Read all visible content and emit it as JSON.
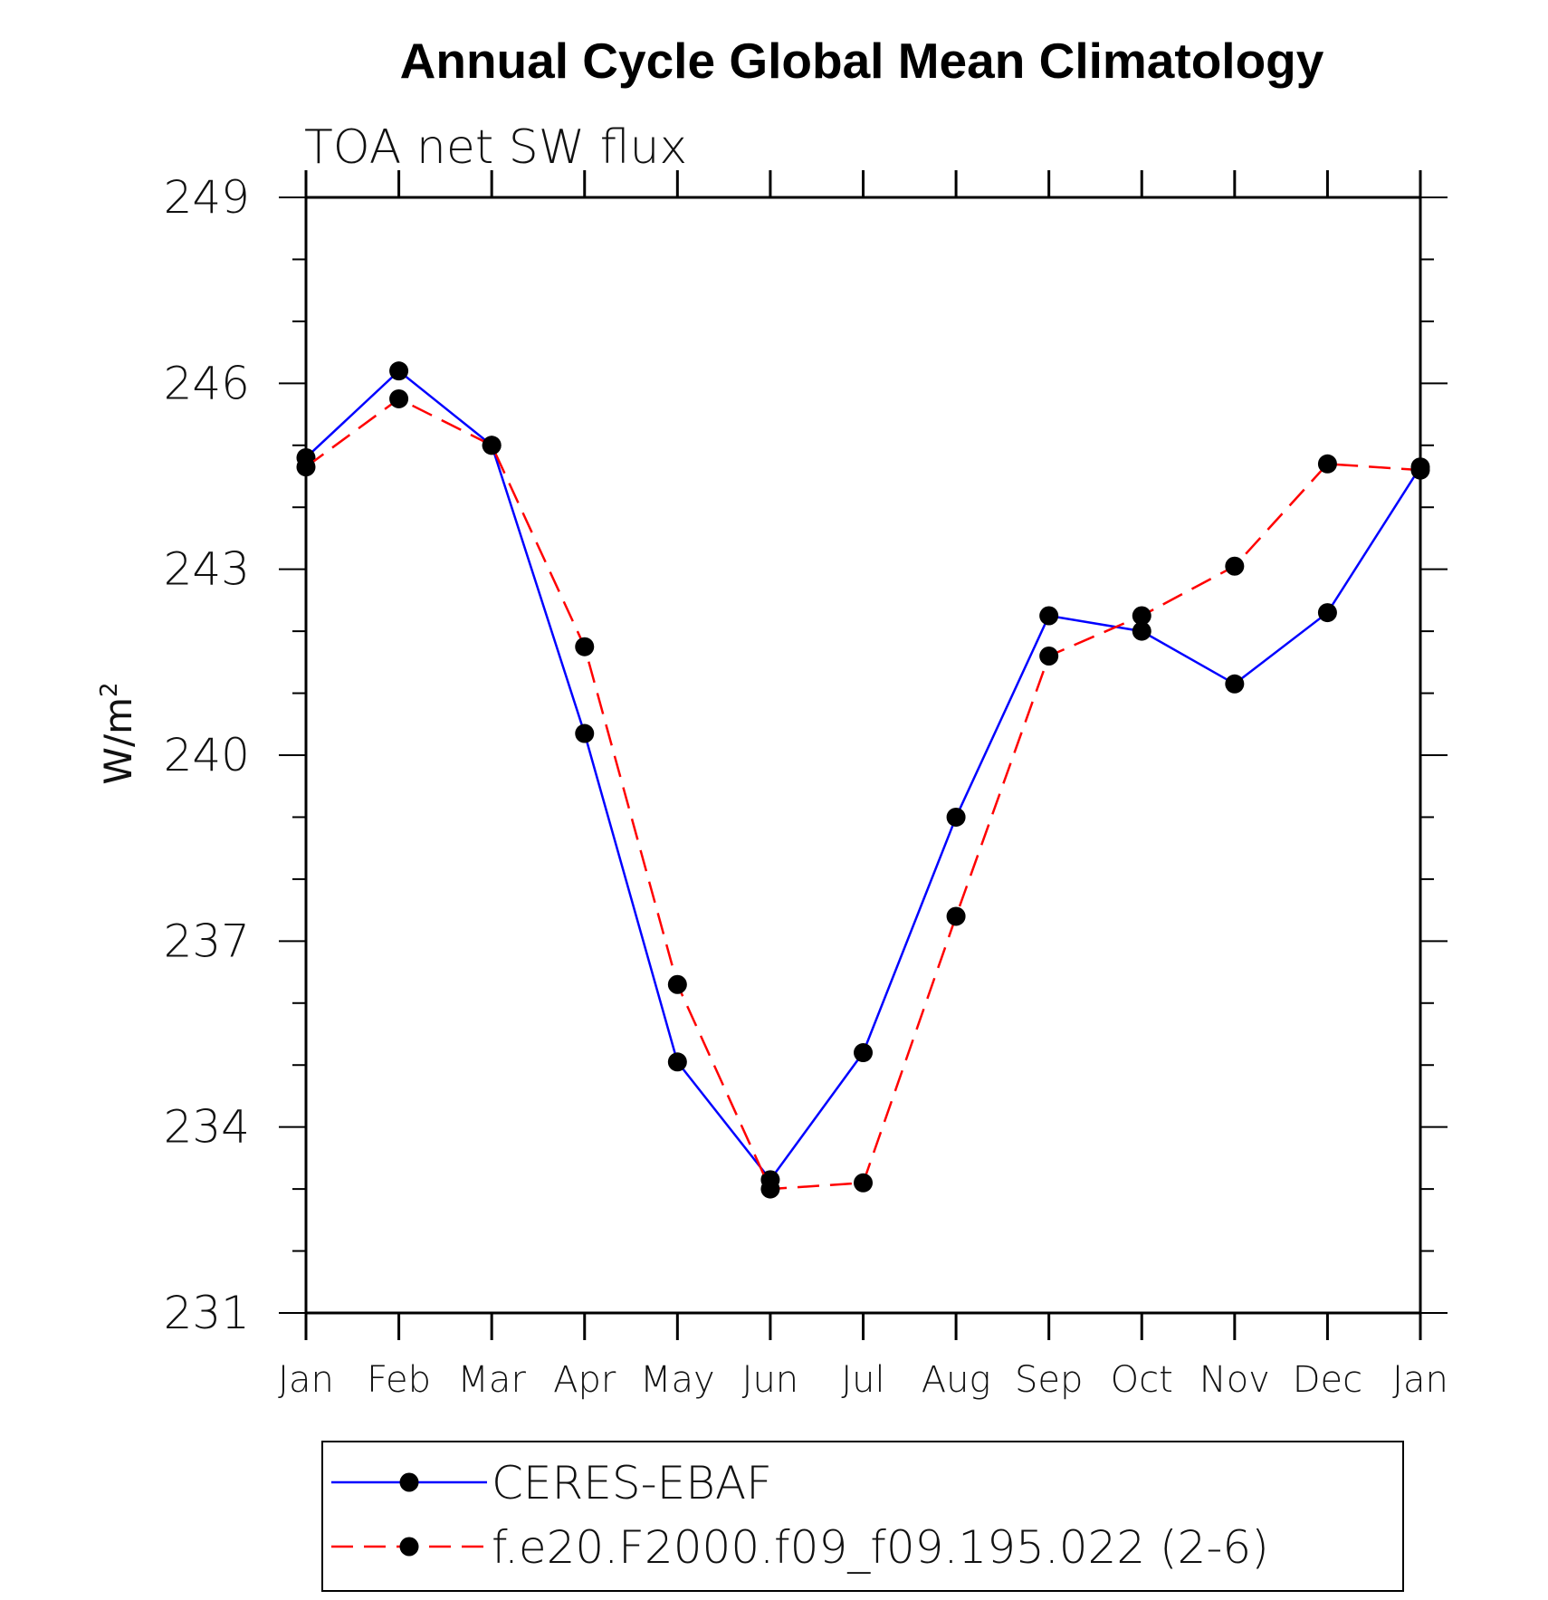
{
  "chart_data": {
    "type": "line",
    "title": "Annual Cycle Global Mean Climatology",
    "subtitle": "TOA net SW flux",
    "ylabel": "W/m",
    "ylabel_superscript": "2",
    "xlabel": "",
    "categories": [
      "Jan",
      "Feb",
      "Mar",
      "Apr",
      "May",
      "Jun",
      "Jul",
      "Aug",
      "Sep",
      "Oct",
      "Nov",
      "Dec",
      "Jan"
    ],
    "ylim": [
      231,
      249
    ],
    "yticks": [
      "249",
      "246",
      "243",
      "240",
      "237",
      "234",
      "231"
    ],
    "grid": false,
    "legend_position": "bottom",
    "series": [
      {
        "name": "CERES-EBAF",
        "color": "#0000ff",
        "line_style": "solid",
        "marker": "filled-circle",
        "values": [
          244.8,
          246.2,
          245.0,
          240.35,
          235.05,
          233.15,
          235.2,
          239.0,
          242.25,
          242.0,
          241.15,
          242.3,
          244.65
        ]
      },
      {
        "name": "f.e20.F2000.f09_f09.195.022 (2-6)",
        "color": "#ff0000",
        "line_style": "dashed",
        "marker": "filled-circle",
        "values": [
          244.65,
          245.75,
          245.0,
          241.75,
          236.3,
          233.0,
          233.1,
          237.4,
          241.6,
          242.25,
          243.05,
          244.7,
          244.6
        ]
      }
    ]
  }
}
